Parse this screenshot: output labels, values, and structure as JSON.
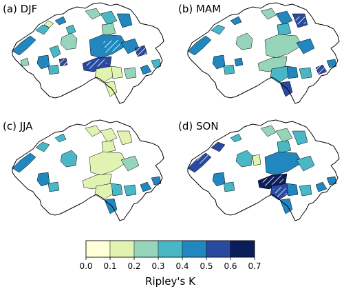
{
  "figure": {
    "panels": [
      {
        "label": "(a) DJF"
      },
      {
        "label": "(b) MAM"
      },
      {
        "label": "(c) JJA"
      },
      {
        "label": "(d) SON"
      }
    ],
    "colorbar": {
      "title": "Ripley's K",
      "ticks": [
        "0.0",
        "0.1",
        "0.2",
        "0.3",
        "0.4",
        "0.5",
        "0.6",
        "0.7"
      ],
      "bins": [
        {
          "range": [
            0.0,
            0.1
          ],
          "color": "#ffffd9"
        },
        {
          "range": [
            0.1,
            0.2
          ],
          "color": "#e0f3b0"
        },
        {
          "range": [
            0.2,
            0.3
          ],
          "color": "#96d5b9"
        },
        {
          "range": [
            0.3,
            0.4
          ],
          "color": "#49b7c6"
        },
        {
          "range": [
            0.4,
            0.5
          ],
          "color": "#2187be"
        },
        {
          "range": [
            0.5,
            0.6
          ],
          "color": "#2a4a9f"
        },
        {
          "range": [
            0.6,
            0.7
          ],
          "color": "#0b1e5a"
        }
      ]
    },
    "outline_color": "#000000",
    "hatch_meaning_shown": false
  }
}
